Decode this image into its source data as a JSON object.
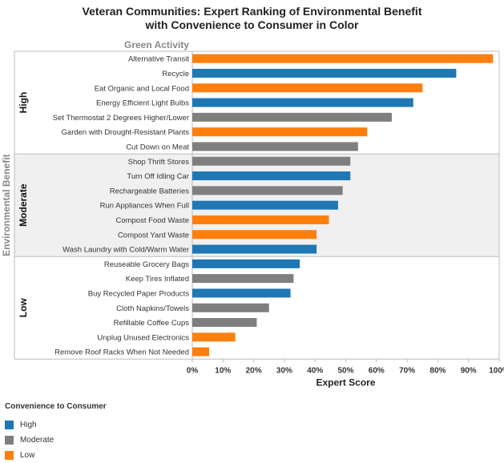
{
  "colors": {
    "high": "#1f77b4",
    "moderate": "#7f7f7f",
    "low": "#ff7f0e"
  },
  "chart_data": {
    "type": "bar",
    "orientation": "horizontal",
    "title_line1": "Veteran Communities: Expert Ranking of Environmental Benefit",
    "title_line2": "with Convenience to Consumer in Color",
    "column_header": "Green Activity",
    "row_axis_label": "Environmental Benefit",
    "xlabel": "Expert Score",
    "xlim": [
      0,
      100
    ],
    "xticks": [
      "0%",
      "10%",
      "20%",
      "30%",
      "40%",
      "50%",
      "60%",
      "70%",
      "80%",
      "90%",
      "100%"
    ],
    "groups": [
      {
        "name": "High",
        "items": [
          {
            "label": "Alternative Transit",
            "value": 98,
            "convenience": "low"
          },
          {
            "label": "Recycle",
            "value": 86,
            "convenience": "high"
          },
          {
            "label": "Eat Organic and Local Food",
            "value": 75,
            "convenience": "low"
          },
          {
            "label": "Energy Efficient Light Bulbs",
            "value": 72,
            "convenience": "high"
          },
          {
            "label": "Set Thermostat 2 Degrees Higher/Lower",
            "value": 65,
            "convenience": "moderate"
          },
          {
            "label": "Garden with Drought-Resistant Plants",
            "value": 57,
            "convenience": "low"
          },
          {
            "label": "Cut Down on Meat",
            "value": 54,
            "convenience": "moderate"
          }
        ]
      },
      {
        "name": "Moderate",
        "items": [
          {
            "label": "Shop Thrift Stores",
            "value": 51.5,
            "convenience": "moderate"
          },
          {
            "label": "Turn Off Idling Car",
            "value": 51.5,
            "convenience": "high"
          },
          {
            "label": "Rechargeable Batteries",
            "value": 49,
            "convenience": "moderate"
          },
          {
            "label": "Run Appliances When Full",
            "value": 47.5,
            "convenience": "high"
          },
          {
            "label": "Compost Food Waste",
            "value": 44.5,
            "convenience": "low"
          },
          {
            "label": "Compost Yard Waste",
            "value": 40.5,
            "convenience": "low"
          },
          {
            "label": "Wash Laundry with Cold/Warm Water",
            "value": 40.5,
            "convenience": "high"
          }
        ]
      },
      {
        "name": "Low",
        "items": [
          {
            "label": "Reuseable Grocery Bags",
            "value": 35,
            "convenience": "high"
          },
          {
            "label": "Keep Tires Inflated",
            "value": 33,
            "convenience": "moderate"
          },
          {
            "label": "Buy Recycled Paper Products",
            "value": 32,
            "convenience": "high"
          },
          {
            "label": "Cloth Napkins/Towels",
            "value": 25,
            "convenience": "moderate"
          },
          {
            "label": "Refillable Coffee Cups",
            "value": 21,
            "convenience": "moderate"
          },
          {
            "label": "Unplug Unused Electronics",
            "value": 14,
            "convenience": "low"
          },
          {
            "label": "Remove Roof Racks When Not Needed",
            "value": 5.5,
            "convenience": "low"
          }
        ]
      }
    ]
  },
  "legend": {
    "title": "Convenience to Consumer",
    "items": [
      {
        "key": "high",
        "label": "High"
      },
      {
        "key": "moderate",
        "label": "Moderate"
      },
      {
        "key": "low",
        "label": "Low"
      }
    ]
  }
}
